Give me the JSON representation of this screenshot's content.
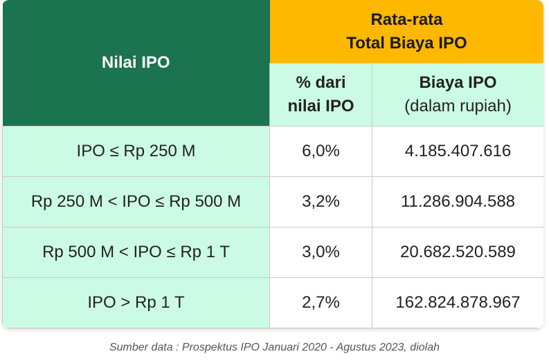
{
  "header": {
    "col1": "Nilai IPO",
    "group": [
      "Rata-rata",
      "Total Biaya IPO"
    ],
    "col2": [
      "% dari",
      "nilai IPO"
    ],
    "col3": [
      "Biaya IPO",
      "(dalam rupiah)"
    ]
  },
  "table": {
    "rows": [
      [
        "IPO ≤ Rp 250 M",
        "6,0%",
        "4.185.407.616"
      ],
      [
        "Rp 250 M < IPO ≤ Rp 500 M",
        "3,2%",
        "11.286.904.588"
      ],
      [
        "Rp 500 M < IPO ≤ Rp 1 T",
        "3,0%",
        "20.682.520.589"
      ],
      [
        "IPO > Rp 1 T",
        "2,7%",
        "162.824.878.967"
      ]
    ]
  },
  "caption": "Sumber data : Prospektus IPO Januari 2020 - Agustus 2023, diolah"
}
